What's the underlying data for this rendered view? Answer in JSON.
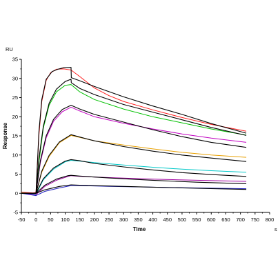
{
  "chart_data": {
    "type": "line",
    "title": "",
    "xlabel": "Time",
    "ylabel": "Response",
    "x_unit": "s",
    "y_unit": "RU",
    "xlim": [
      -50,
      800
    ],
    "ylim": [
      -5,
      35
    ],
    "x_ticks": [
      -50,
      0,
      50,
      100,
      150,
      200,
      250,
      300,
      350,
      400,
      450,
      500,
      550,
      600,
      650,
      700,
      750,
      800
    ],
    "y_ticks": [
      -5,
      0,
      5,
      10,
      15,
      20,
      25,
      30,
      35
    ],
    "grid": false,
    "legend": "none",
    "association_end": 120,
    "series": [
      {
        "color": "#ff2020",
        "points": [
          [
            -50,
            0.3
          ],
          [
            -10,
            0.1
          ],
          [
            0,
            0.2
          ],
          [
            10,
            15
          ],
          [
            20,
            24
          ],
          [
            35,
            29.5
          ],
          [
            50,
            31.5
          ],
          [
            70,
            32.4
          ],
          [
            95,
            32.5
          ],
          [
            120,
            32.2
          ],
          [
            150,
            30.5
          ],
          [
            200,
            27.5
          ],
          [
            250,
            25.5
          ],
          [
            300,
            24
          ],
          [
            400,
            21.8
          ],
          [
            500,
            19.8
          ],
          [
            600,
            18
          ],
          [
            720,
            16.2
          ]
        ]
      },
      {
        "color": "#00c000",
        "points": [
          [
            -50,
            0.1
          ],
          [
            0,
            0
          ],
          [
            10,
            8
          ],
          [
            25,
            17
          ],
          [
            45,
            23
          ],
          [
            70,
            26.5
          ],
          [
            100,
            28.2
          ],
          [
            120,
            28.4
          ],
          [
            150,
            26.5
          ],
          [
            200,
            24.5
          ],
          [
            300,
            22
          ],
          [
            400,
            20
          ],
          [
            500,
            18.4
          ],
          [
            600,
            16.8
          ],
          [
            720,
            15.2
          ]
        ]
      },
      {
        "color": "#c000c0",
        "points": [
          [
            -50,
            0
          ],
          [
            0,
            0
          ],
          [
            15,
            8
          ],
          [
            35,
            14.5
          ],
          [
            60,
            18.8
          ],
          [
            90,
            21.3
          ],
          [
            120,
            22.5
          ],
          [
            150,
            21.5
          ],
          [
            200,
            20
          ],
          [
            300,
            18.3
          ],
          [
            400,
            16.8
          ],
          [
            500,
            15.5
          ],
          [
            600,
            14.4
          ],
          [
            720,
            13.3
          ]
        ]
      },
      {
        "color": "#e8a000",
        "points": [
          [
            -50,
            0
          ],
          [
            0,
            0
          ],
          [
            20,
            5.5
          ],
          [
            45,
            9.6
          ],
          [
            80,
            13.2
          ],
          [
            120,
            15.1
          ],
          [
            150,
            14.6
          ],
          [
            200,
            13.7
          ],
          [
            300,
            12.6
          ],
          [
            400,
            11.6
          ],
          [
            500,
            10.7
          ],
          [
            600,
            10
          ],
          [
            720,
            9.4
          ]
        ]
      },
      {
        "color": "#00c8c8",
        "points": [
          [
            -50,
            0
          ],
          [
            0,
            -0.2
          ],
          [
            25,
            3.5
          ],
          [
            60,
            6.3
          ],
          [
            100,
            8.2
          ],
          [
            120,
            8.6
          ],
          [
            150,
            8.4
          ],
          [
            200,
            8
          ],
          [
            300,
            7.4
          ],
          [
            400,
            6.8
          ],
          [
            500,
            6.3
          ],
          [
            600,
            5.9
          ],
          [
            720,
            5.5
          ]
        ]
      },
      {
        "color": "#a000a0",
        "points": [
          [
            -50,
            0
          ],
          [
            0,
            -0.4
          ],
          [
            30,
            1.8
          ],
          [
            70,
            3.4
          ],
          [
            110,
            4.4
          ],
          [
            120,
            4.6
          ],
          [
            150,
            4.4
          ],
          [
            250,
            4.1
          ],
          [
            400,
            3.7
          ],
          [
            550,
            3.4
          ],
          [
            720,
            3.1
          ]
        ]
      },
      {
        "color": "#2020c0",
        "points": [
          [
            -50,
            0
          ],
          [
            0,
            -0.6
          ],
          [
            30,
            0.5
          ],
          [
            80,
            1.4
          ],
          [
            120,
            2
          ],
          [
            150,
            2
          ],
          [
            250,
            1.8
          ],
          [
            400,
            1.6
          ],
          [
            550,
            1.4
          ],
          [
            720,
            1.2
          ]
        ]
      },
      {
        "color": "#000000",
        "points": [
          [
            -50,
            0
          ],
          [
            0,
            0
          ],
          [
            10,
            16
          ],
          [
            20,
            24.5
          ],
          [
            35,
            29.8
          ],
          [
            55,
            31.8
          ],
          [
            75,
            32.4
          ],
          [
            95,
            32.8
          ],
          [
            120,
            32.9
          ],
          [
            121,
            30.2
          ],
          [
            150,
            29.4
          ],
          [
            200,
            27.9
          ],
          [
            300,
            25.2
          ],
          [
            400,
            22.8
          ],
          [
            500,
            20.6
          ],
          [
            600,
            18.2
          ],
          [
            720,
            15.7
          ]
        ]
      },
      {
        "color": "#000000",
        "points": [
          [
            -50,
            0
          ],
          [
            0,
            0
          ],
          [
            10,
            9
          ],
          [
            25,
            17.5
          ],
          [
            45,
            23.5
          ],
          [
            70,
            27.2
          ],
          [
            100,
            29.2
          ],
          [
            120,
            29.8
          ],
          [
            121,
            28.9
          ],
          [
            150,
            27.4
          ],
          [
            200,
            25.8
          ],
          [
            300,
            23.2
          ],
          [
            400,
            21.2
          ],
          [
            500,
            19.2
          ],
          [
            600,
            17.2
          ],
          [
            720,
            15.1
          ]
        ]
      },
      {
        "color": "#000000",
        "points": [
          [
            -50,
            0
          ],
          [
            0,
            0
          ],
          [
            15,
            8.5
          ],
          [
            35,
            15
          ],
          [
            60,
            19.3
          ],
          [
            90,
            21.9
          ],
          [
            120,
            23
          ],
          [
            150,
            22
          ],
          [
            200,
            20.6
          ],
          [
            300,
            18.6
          ],
          [
            400,
            16.6
          ],
          [
            500,
            14.8
          ],
          [
            600,
            13.3
          ],
          [
            720,
            12
          ]
        ]
      },
      {
        "color": "#000000",
        "points": [
          [
            -50,
            0
          ],
          [
            0,
            0
          ],
          [
            20,
            5.8
          ],
          [
            45,
            9.9
          ],
          [
            80,
            13.4
          ],
          [
            120,
            15.3
          ],
          [
            150,
            14.7
          ],
          [
            200,
            13.7
          ],
          [
            300,
            12.2
          ],
          [
            400,
            11
          ],
          [
            500,
            10
          ],
          [
            600,
            9.2
          ],
          [
            720,
            8.3
          ]
        ]
      },
      {
        "color": "#000000",
        "points": [
          [
            -50,
            0
          ],
          [
            0,
            0
          ],
          [
            25,
            3.8
          ],
          [
            60,
            6.6
          ],
          [
            100,
            8.4
          ],
          [
            120,
            8.8
          ],
          [
            150,
            8.5
          ],
          [
            200,
            7.8
          ],
          [
            300,
            6.9
          ],
          [
            400,
            6.1
          ],
          [
            500,
            5.4
          ],
          [
            600,
            4.9
          ],
          [
            720,
            4.4
          ]
        ]
      },
      {
        "color": "#000000",
        "points": [
          [
            -50,
            0
          ],
          [
            0,
            0
          ],
          [
            30,
            2.1
          ],
          [
            70,
            3.7
          ],
          [
            110,
            4.6
          ],
          [
            120,
            4.7
          ],
          [
            150,
            4.5
          ],
          [
            250,
            4
          ],
          [
            400,
            3.4
          ],
          [
            550,
            2.9
          ],
          [
            720,
            2.5
          ]
        ]
      },
      {
        "color": "#000000",
        "points": [
          [
            -50,
            0
          ],
          [
            0,
            0
          ],
          [
            30,
            0.9
          ],
          [
            80,
            1.8
          ],
          [
            120,
            2.2
          ],
          [
            150,
            2.1
          ],
          [
            250,
            1.9
          ],
          [
            400,
            1.6
          ],
          [
            550,
            1.3
          ],
          [
            720,
            1
          ]
        ]
      }
    ]
  }
}
